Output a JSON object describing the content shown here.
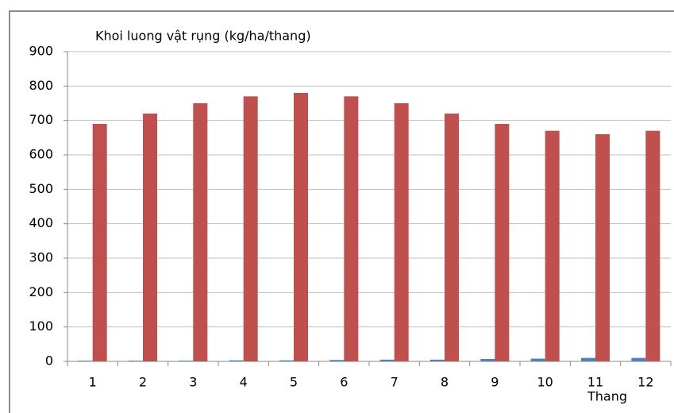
{
  "chart_data": {
    "type": "bar",
    "title": "Khoi luong vật rụng (kg/ha/thang)",
    "x_label": "Thang",
    "categories": [
      "1",
      "2",
      "3",
      "4",
      "5",
      "6",
      "7",
      "8",
      "9",
      "10",
      "11",
      "12"
    ],
    "series": [
      {
        "color": "#4f81bd",
        "values": [
          2,
          2,
          2,
          3,
          3,
          4,
          5,
          5,
          7,
          8,
          10,
          10
        ]
      },
      {
        "color": "#c0504d",
        "values": [
          690,
          720,
          750,
          770,
          780,
          770,
          750,
          720,
          690,
          670,
          660,
          670
        ]
      }
    ],
    "ylim": [
      0,
      900
    ],
    "yticks": [
      0,
      100,
      200,
      300,
      400,
      500,
      600,
      700,
      800,
      900
    ],
    "grid": true
  }
}
